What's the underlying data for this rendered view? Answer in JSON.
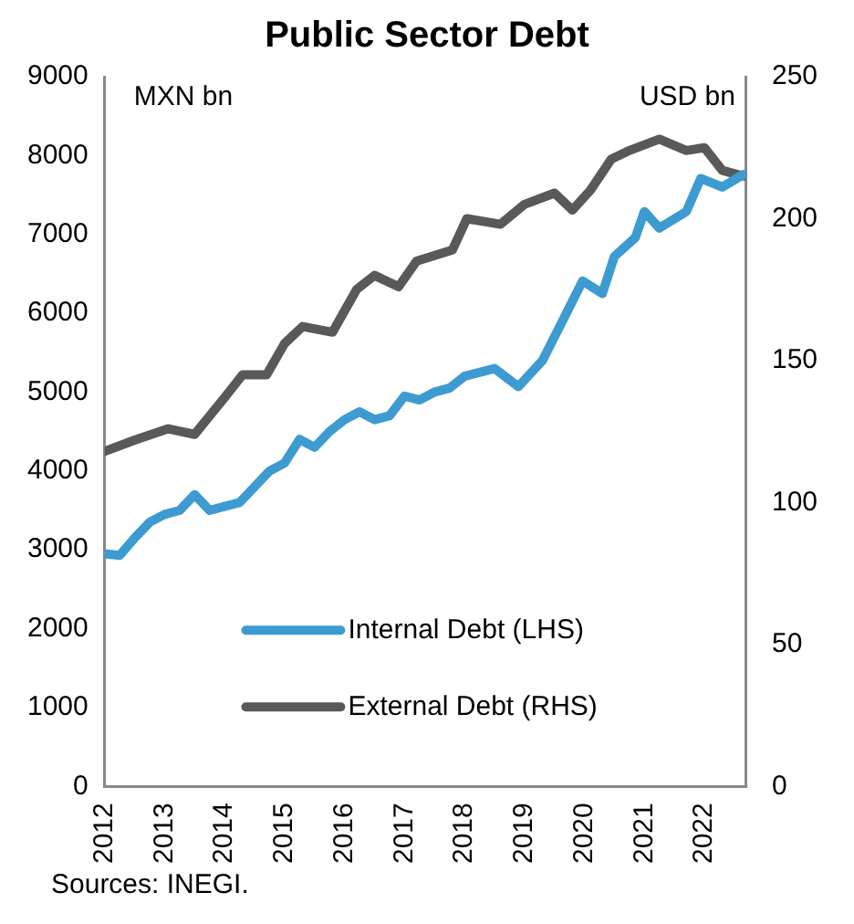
{
  "chart_data": {
    "type": "line",
    "title": "Public Sector Debt",
    "ylabel": "MXN bn",
    "y2label": "USD bn",
    "annotations": [
      "Sources: INEGI."
    ],
    "xlim": [
      2012,
      2022.7
    ],
    "xticks": [
      2012,
      2013,
      2014,
      2015,
      2016,
      2017,
      2018,
      2019,
      2020,
      2021,
      2022
    ],
    "ylim": [
      0,
      9000
    ],
    "yticks": [
      0,
      1000,
      2000,
      3000,
      4000,
      5000,
      6000,
      7000,
      8000,
      9000
    ],
    "y2lim": [
      0,
      250
    ],
    "y2ticks": [
      0,
      50,
      100,
      150,
      200,
      250
    ],
    "legend": "bottom",
    "grid": false,
    "marker": "none",
    "line_style": "solid",
    "series": [
      {
        "name": "Internal Debt (LHS)",
        "color": "#3d9bd1",
        "x": [
          2012,
          2012.25,
          2012.5,
          2012.75,
          2013,
          2013.25,
          2013.5,
          2013.75,
          2014,
          2014.25,
          2014.5,
          2014.75,
          2015,
          2015.25,
          2015.5,
          2015.75,
          2016,
          2016.25,
          2016.5,
          2016.75,
          2017,
          2017.25,
          2017.5,
          2017.75,
          2018,
          2018.25,
          2018.5,
          2018.9,
          2019.3,
          2019.66,
          2019.97,
          2020.3,
          2020.5,
          2020.85,
          2021,
          2021.25,
          2021.7,
          2021.94,
          2022.3,
          2022.65
        ],
        "values": [
          2950,
          2930,
          3150,
          3350,
          3450,
          3500,
          3700,
          3500,
          3550,
          3600,
          3800,
          4000,
          4100,
          4400,
          4300,
          4500,
          4650,
          4750,
          4650,
          4700,
          4950,
          4900,
          5000,
          5050,
          5200,
          5250,
          5300,
          5070,
          5400,
          5940,
          6410,
          6250,
          6720,
          6960,
          7290,
          7080,
          7290,
          7710,
          7600,
          7760
        ]
      },
      {
        "name": "External Debt (RHS)",
        "color": "#595959",
        "axis": "y2",
        "x": [
          2012,
          2012.5,
          2013.06,
          2013.5,
          2014,
          2014.3,
          2014.7,
          2015,
          2015.3,
          2015.8,
          2016.2,
          2016.5,
          2016.9,
          2017.2,
          2017.8,
          2018.04,
          2018.6,
          2019,
          2019.5,
          2019.8,
          2020.1,
          2020.45,
          2020.75,
          2021.25,
          2021.7,
          2022,
          2022.3,
          2022.65
        ],
        "values": [
          118,
          122,
          126,
          124,
          137,
          145,
          145,
          156,
          162,
          160,
          175,
          180,
          176,
          185,
          189,
          200,
          198,
          205,
          209,
          203,
          210,
          221,
          224,
          228,
          224,
          225,
          217,
          215
        ]
      }
    ]
  }
}
